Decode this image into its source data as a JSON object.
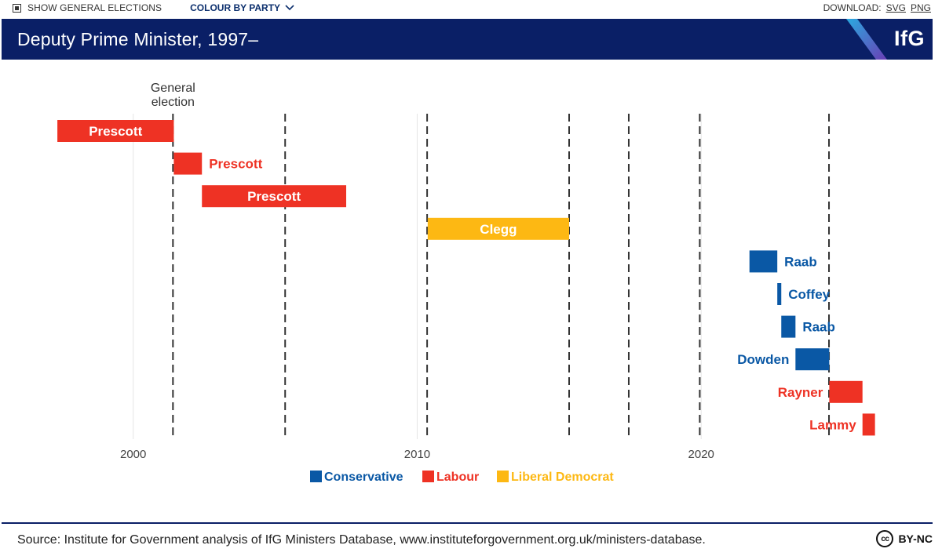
{
  "toolbar": {
    "show_elections_label": "SHOW GENERAL ELECTIONS",
    "colour_by_label": "COLOUR BY PARTY",
    "download_label": "DOWNLOAD:",
    "svg_label": "SVG",
    "png_label": "PNG"
  },
  "header": {
    "title": "Deputy Prime Minister, 1997–",
    "logo": "IfG"
  },
  "colors": {
    "Conservative": "#0a58a5",
    "Labour": "#ee3224",
    "Liberal Democrat": "#fdb813",
    "header": "#0a1f66"
  },
  "chart_data": {
    "type": "bar",
    "subtype": "gantt",
    "title": "Deputy Prime Minister, 1997–",
    "xlim": [
      1997.3,
      2026.6
    ],
    "xticks": [
      2000,
      2010,
      2020
    ],
    "xtick_labels": [
      "2000",
      "2010",
      "2020"
    ],
    "election_annotation": "General\nelection",
    "general_elections": [
      2001.4,
      2005.35,
      2010.35,
      2015.35,
      2017.45,
      2019.95,
      2024.5
    ],
    "bars": [
      {
        "name": "Prescott",
        "party": "Labour",
        "start": 1997.33,
        "end": 2001.43,
        "label_inside": true
      },
      {
        "name": "Prescott",
        "party": "Labour",
        "start": 2001.43,
        "end": 2002.42,
        "label_inside": false
      },
      {
        "name": "Prescott",
        "party": "Labour",
        "start": 2002.42,
        "end": 2007.5,
        "label_inside": true
      },
      {
        "name": "Clegg",
        "party": "Liberal Democrat",
        "start": 2010.37,
        "end": 2015.35,
        "label_inside": true
      },
      {
        "name": "Raab",
        "party": "Conservative",
        "start": 2021.7,
        "end": 2022.68,
        "label_inside": false
      },
      {
        "name": "Coffey",
        "party": "Conservative",
        "start": 2022.68,
        "end": 2022.82,
        "label_inside": false
      },
      {
        "name": "Raab",
        "party": "Conservative",
        "start": 2022.82,
        "end": 2023.32,
        "label_inside": false
      },
      {
        "name": "Dowden",
        "party": "Conservative",
        "start": 2023.32,
        "end": 2024.51,
        "label_inside": false,
        "label_left": true
      },
      {
        "name": "Rayner",
        "party": "Labour",
        "start": 2024.51,
        "end": 2025.68,
        "label_inside": false,
        "label_left": true
      },
      {
        "name": "Lammy",
        "party": "Labour",
        "start": 2025.68,
        "end": 2026.12,
        "label_inside": false,
        "label_left": true
      }
    ],
    "legend": [
      "Conservative",
      "Labour",
      "Liberal Democrat"
    ]
  },
  "footer": {
    "source": "Source: Institute for Government analysis of IfG Ministers Database, www.instituteforgovernment.org.uk/ministers-database.",
    "license": "BY-NC",
    "cc": "cc"
  }
}
